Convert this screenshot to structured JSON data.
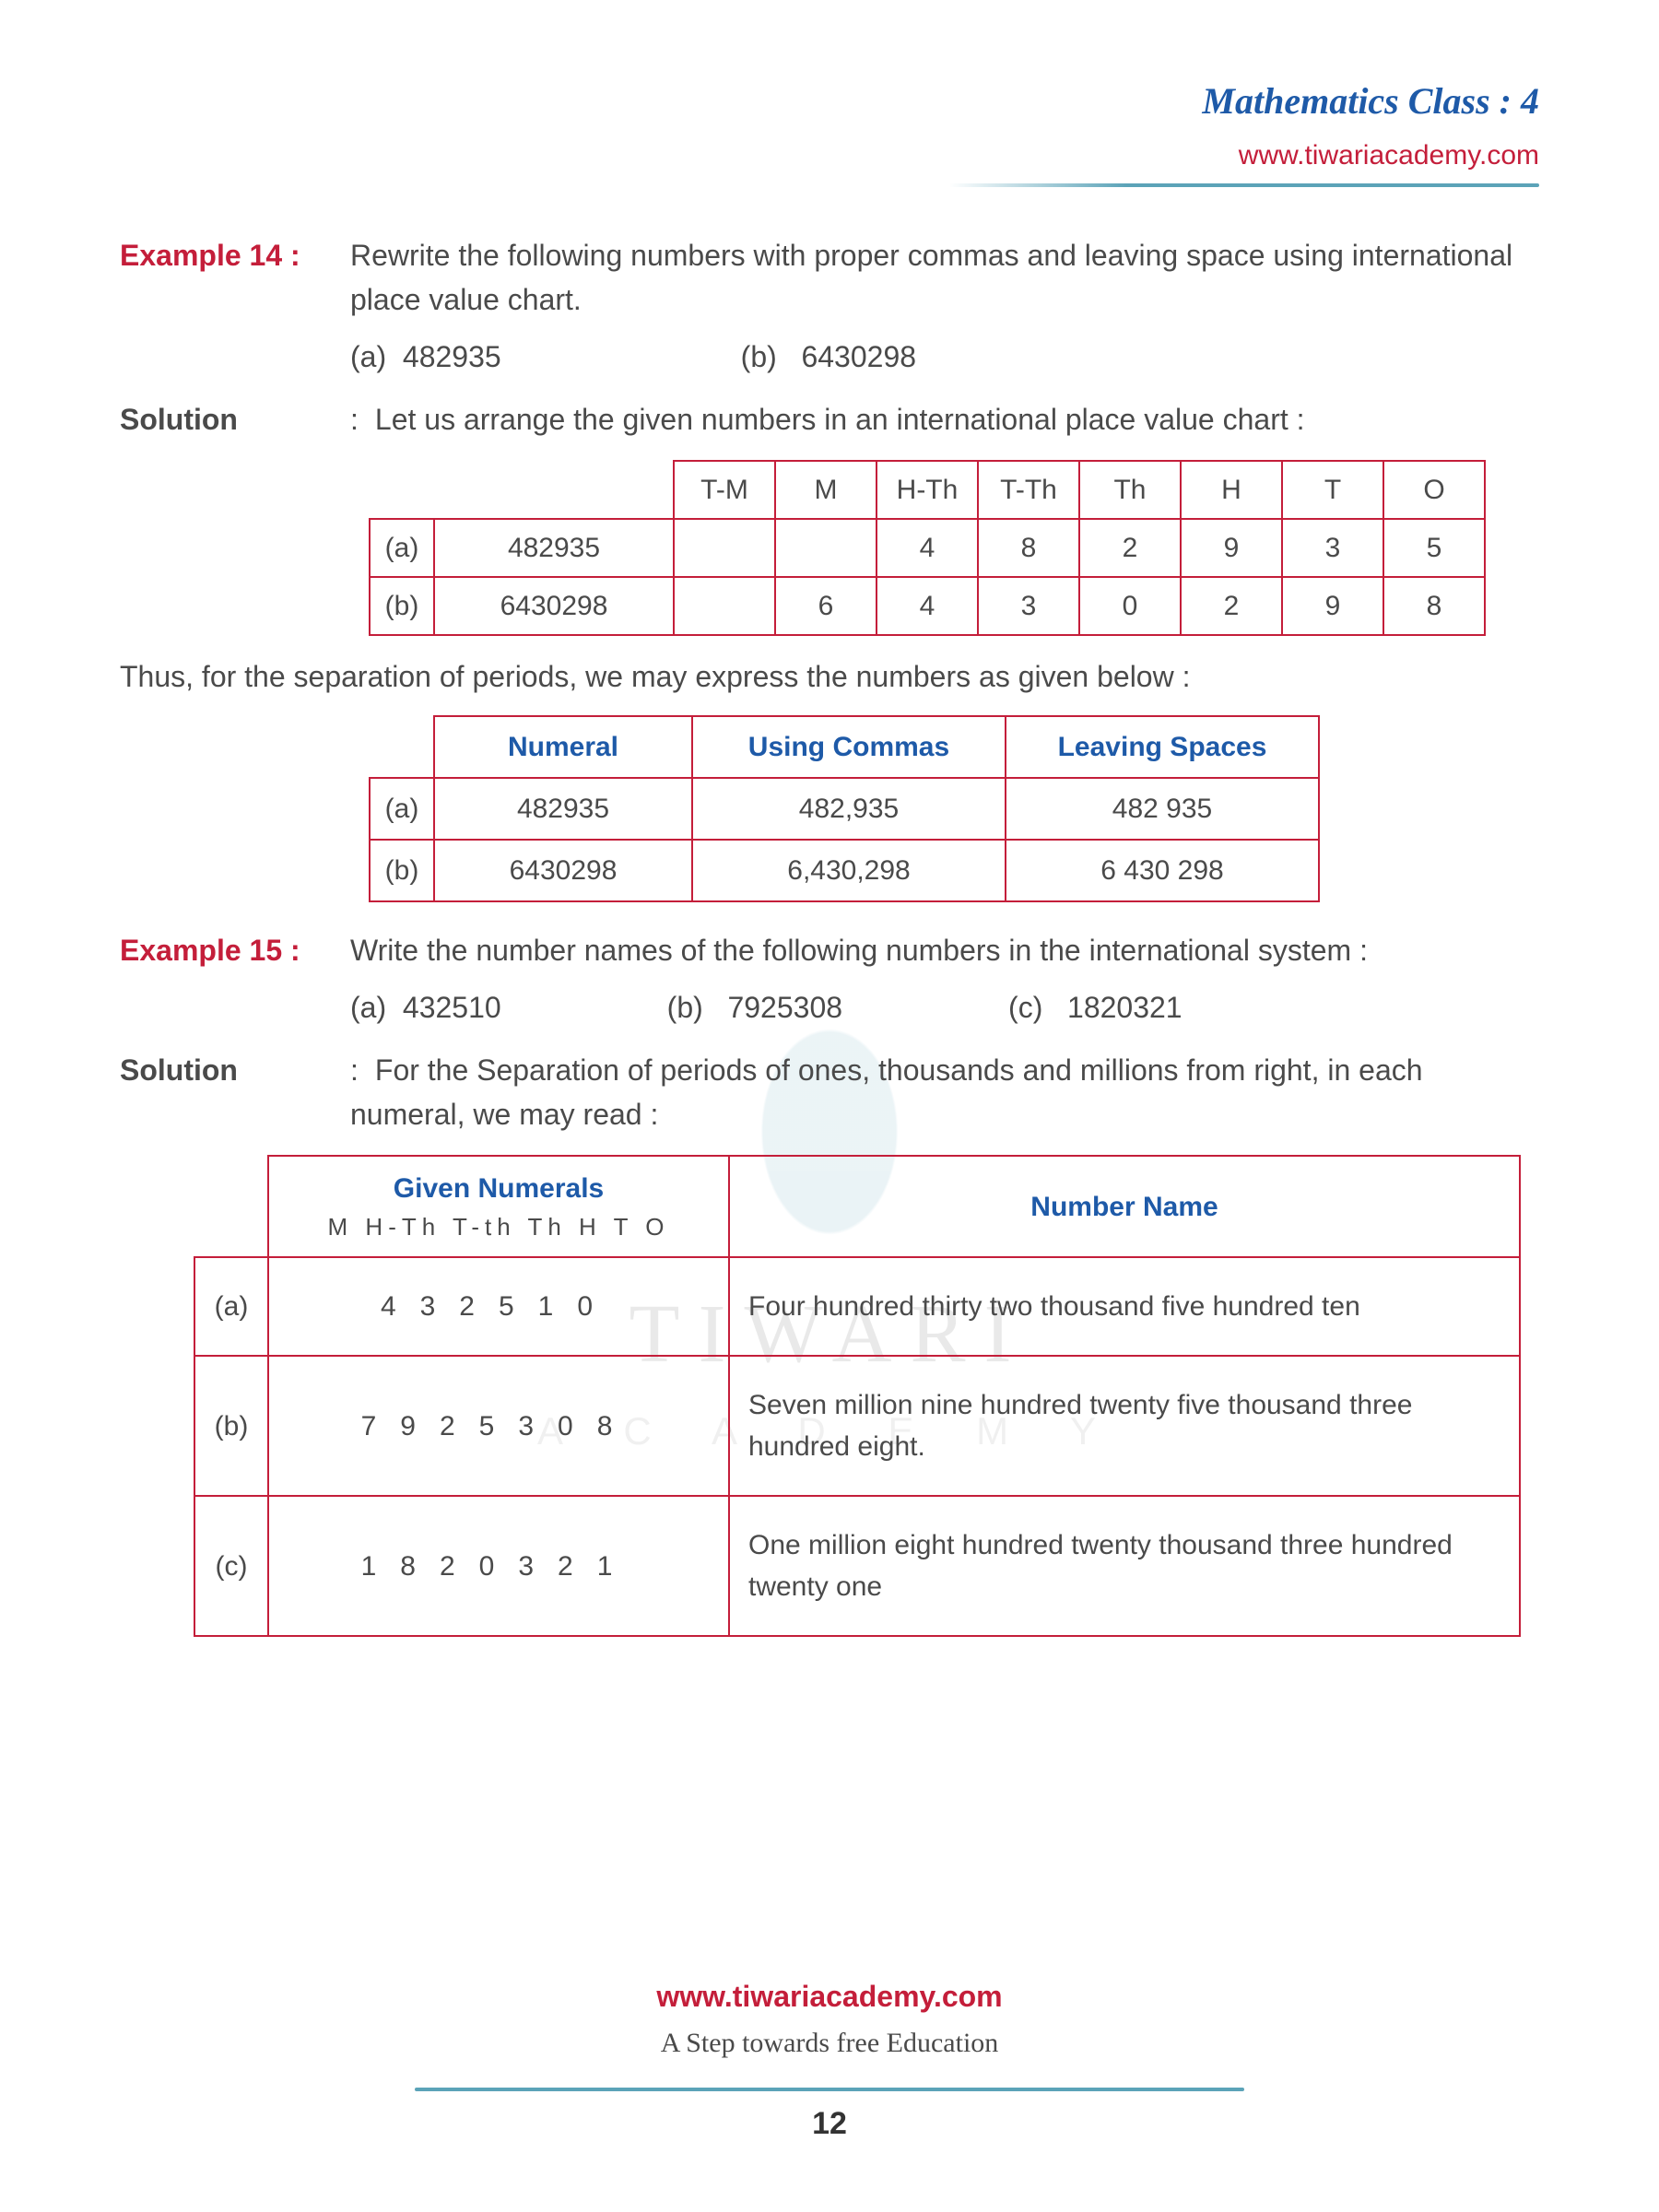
{
  "header": {
    "title": "Mathematics Class : 4",
    "link": "www.tiwariacademy.com"
  },
  "ex14": {
    "label": "Example 14 :",
    "text": "Rewrite the following numbers with proper commas and leaving space using international place value chart.",
    "a_label": "(a)",
    "a_val": "482935",
    "b_label": "(b)",
    "b_val": "6430298"
  },
  "sol14": {
    "label": "Solution",
    "colon": ":",
    "text": "Let us arrange the given numbers in an international place value chart :"
  },
  "table1": {
    "headers": [
      "T-M",
      "M",
      "H-Th",
      "T-Th",
      "Th",
      "H",
      "T",
      "O"
    ],
    "rows": [
      {
        "lbl": "(a)",
        "num": "482935",
        "cells": [
          "",
          "",
          "4",
          "8",
          "2",
          "9",
          "3",
          "5"
        ]
      },
      {
        "lbl": "(b)",
        "num": "6430298",
        "cells": [
          "",
          "6",
          "4",
          "3",
          "0",
          "2",
          "9",
          "8"
        ]
      }
    ]
  },
  "inter1": "Thus, for the separation of periods, we may express the numbers as given below :",
  "table2": {
    "headers": [
      "Numeral",
      "Using Commas",
      "Leaving Spaces"
    ],
    "rows": [
      {
        "lbl": "(a)",
        "c1": "482935",
        "c2": "482,935",
        "c3": "482 935"
      },
      {
        "lbl": "(b)",
        "c1": "6430298",
        "c2": "6,430,298",
        "c3": "6 430 298"
      }
    ]
  },
  "ex15": {
    "label": "Example 15 :",
    "text": "Write the number names of the following numbers in the international system :",
    "a_label": "(a)",
    "a_val": "432510",
    "b_label": "(b)",
    "b_val": "7925308",
    "c_label": "(c)",
    "c_val": "1820321"
  },
  "sol15": {
    "label": "Solution",
    "colon": ":",
    "text": "For the Separation of  periods of ones, thousands and millions from right, in each numeral, we may read :"
  },
  "table3": {
    "h1": "Given Numerals",
    "h2": "Number Name",
    "sub": "M  H-Th  T-th  Th  H  T   O",
    "rows": [
      {
        "lbl": "(a)",
        "digits": " 432510",
        "name": "Four hundred thirty two thousand five hundred ten"
      },
      {
        "lbl": "(b)",
        "digits": "7925308",
        "name": "Seven million nine hundred twenty five thousand three hundred eight."
      },
      {
        "lbl": "(c)",
        "digits": "1820321",
        "name": "One million eight hundred twenty thousand three hundred twenty one"
      }
    ]
  },
  "footer": {
    "link": "www.tiwariacademy.com",
    "sub": "A Step towards free Education",
    "page": "12"
  },
  "watermark": {
    "t1": "TIWARI",
    "t2": "A C A D E M Y"
  }
}
